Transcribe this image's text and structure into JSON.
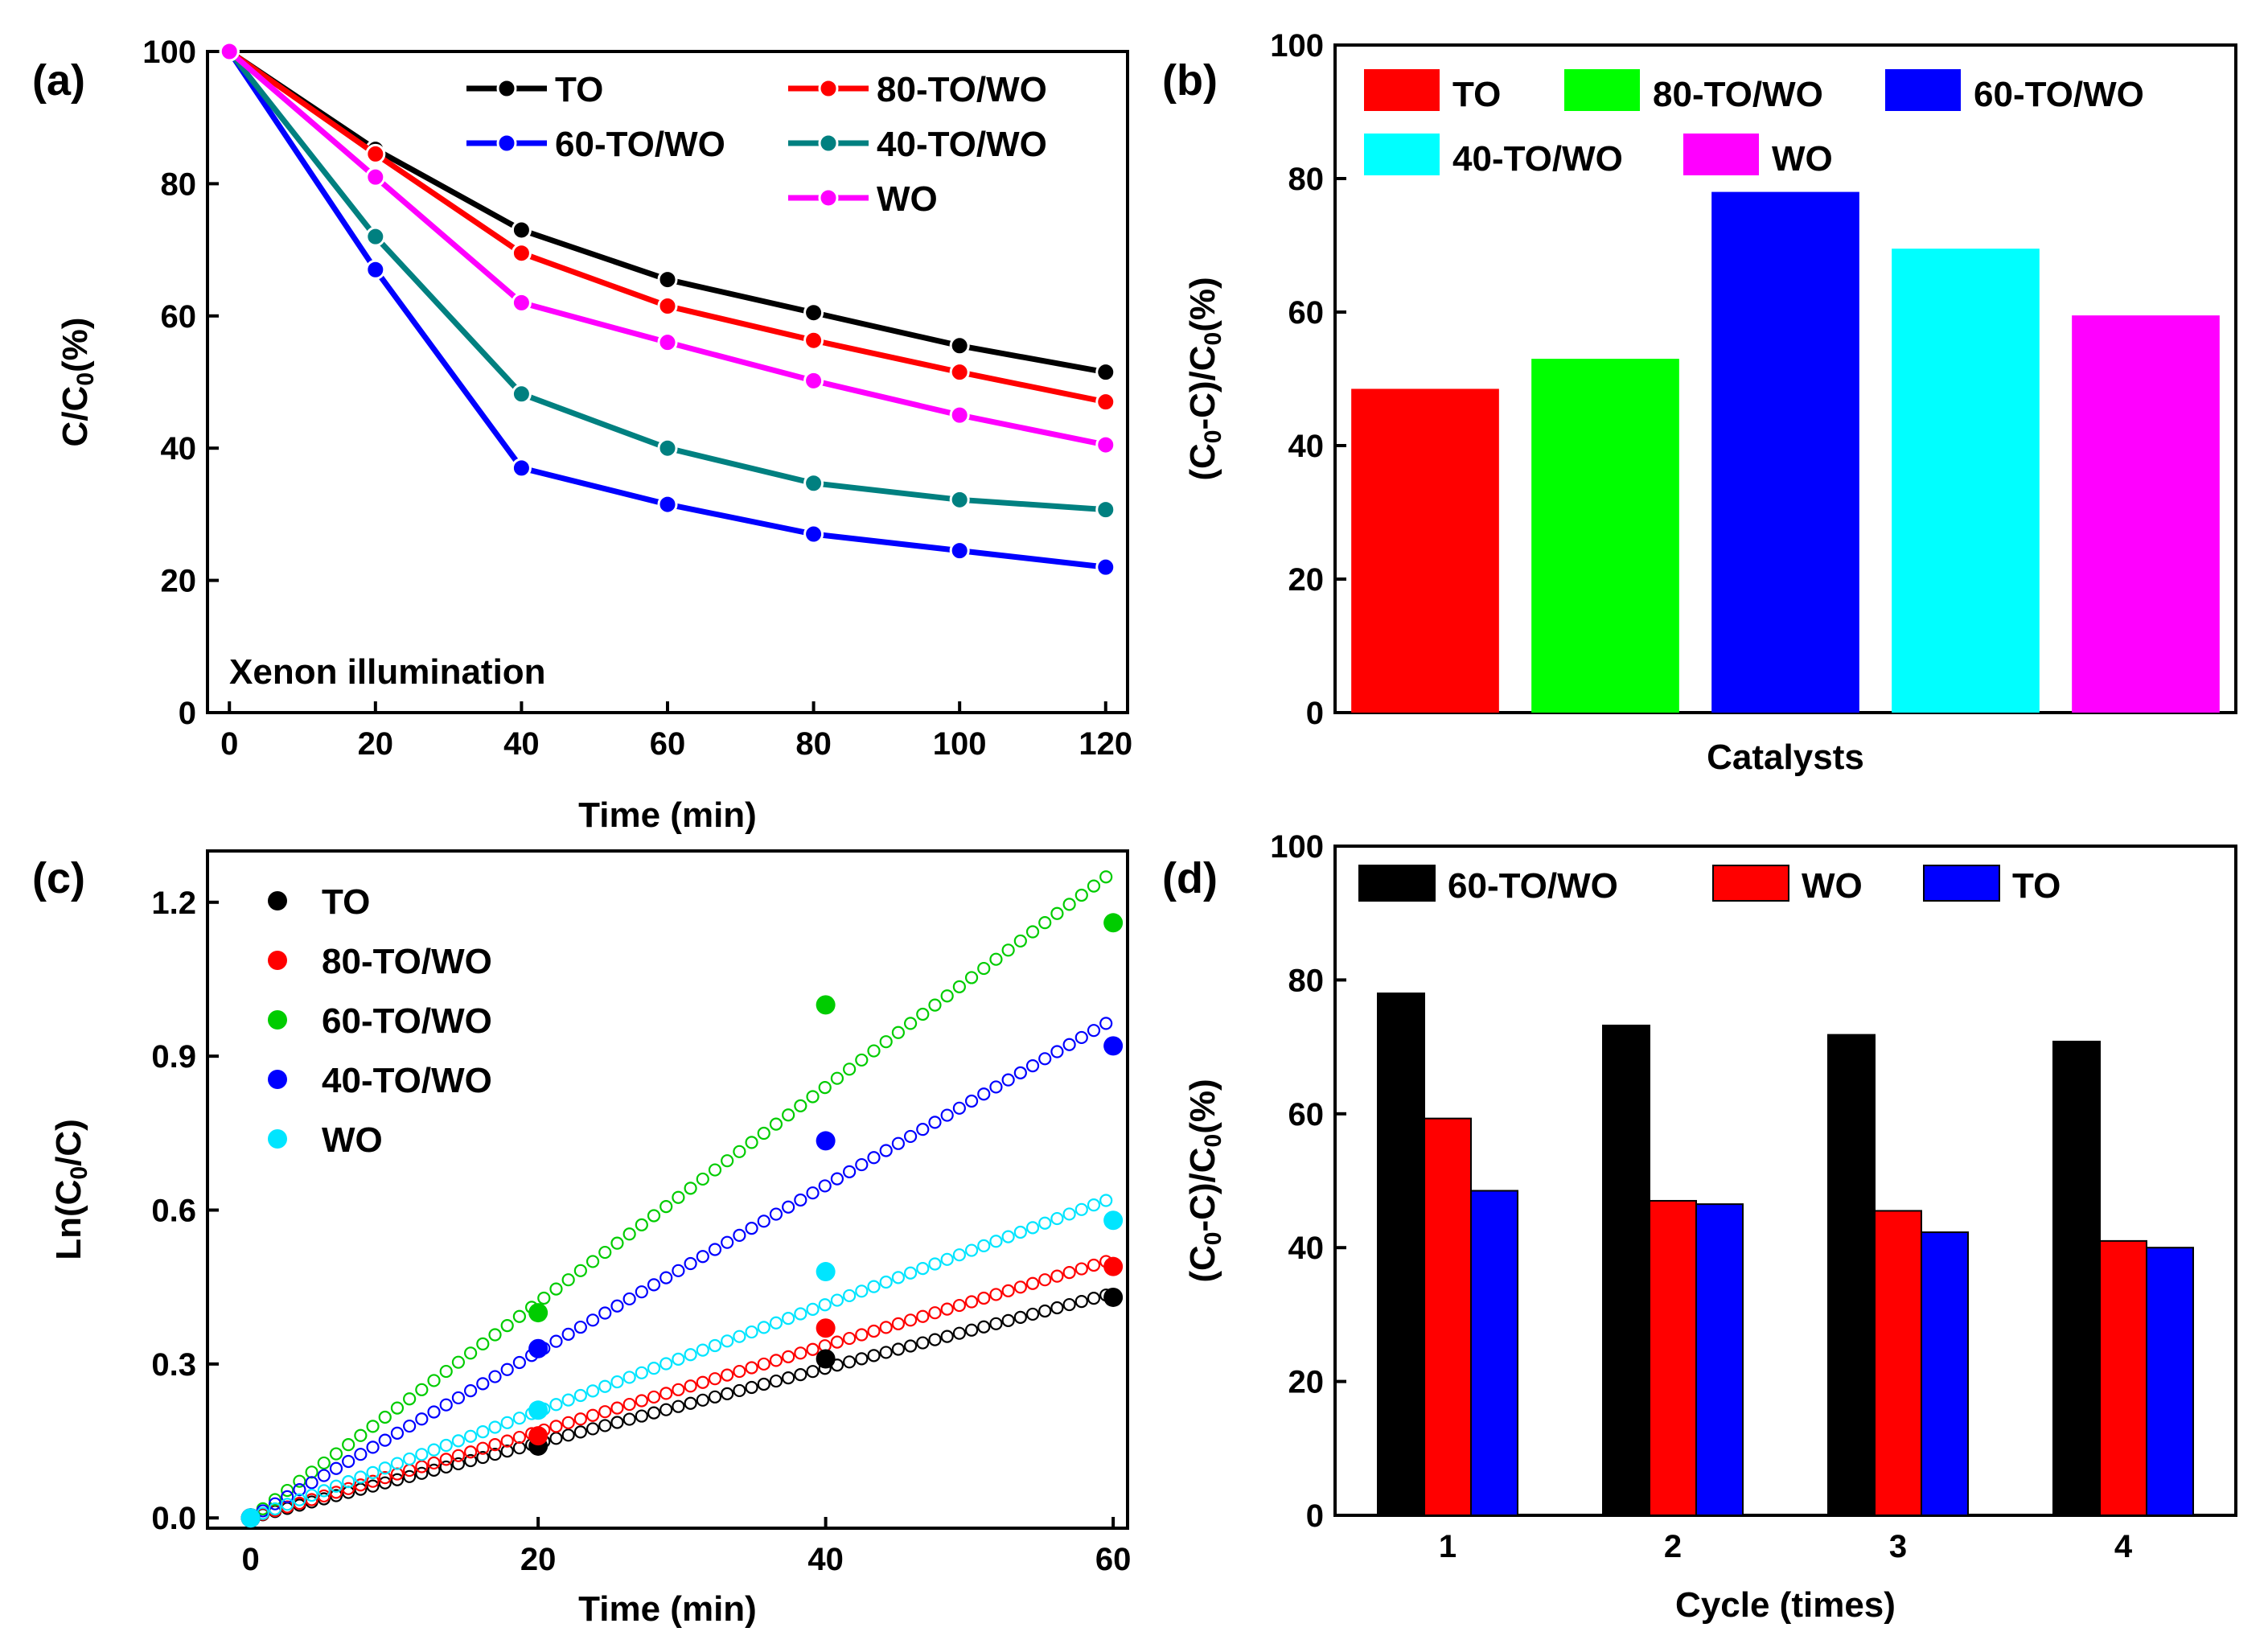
{
  "colors": {
    "TO": "#000000",
    "80-TO/WO": "#ff0000",
    "60-TO/WO": "#0000ff",
    "40-TO/WO": "#008080",
    "WO": "#ff00ff",
    "bar_TO": "#ff0000",
    "bar_80": "#00ff00",
    "bar_60": "#0000ff",
    "bar_40": "#00ffff",
    "bar_WO": "#ff00ff",
    "c_TO": "#000000",
    "c_80": "#ff0000",
    "c_60": "#00cc00",
    "c_40": "#0000ff",
    "c_WO": "#00e5ff",
    "d_60": "#000000",
    "d_WO": "#ff0000",
    "d_TO": "#0000ff"
  },
  "chart_data": [
    {
      "id": "a",
      "panel_label": "(a)",
      "type": "line",
      "xlabel": "Time (min)",
      "ylabel_main": "C/C",
      "ylabel_sub": "0",
      "ylabel_tail": "(%)",
      "annotation": "Xenon illumination",
      "xlim": [
        -3,
        123
      ],
      "ylim": [
        0,
        100
      ],
      "xticks": [
        0,
        20,
        40,
        60,
        80,
        100,
        120
      ],
      "yticks": [
        0,
        20,
        40,
        60,
        80,
        100
      ],
      "x": [
        0,
        20,
        40,
        60,
        80,
        100,
        120
      ],
      "series": [
        {
          "name": "TO",
          "color_key": "TO",
          "values": [
            100,
            85.2,
            73,
            65.5,
            60.5,
            55.5,
            51.5
          ]
        },
        {
          "name": "80-TO/WO",
          "color_key": "80-TO/WO",
          "values": [
            100,
            84.5,
            69.5,
            61.5,
            56.3,
            51.5,
            47
          ]
        },
        {
          "name": "60-TO/WO",
          "color_key": "60-TO/WO",
          "values": [
            100,
            67,
            37,
            31.5,
            27,
            24.5,
            22
          ]
        },
        {
          "name": "40-TO/WO",
          "color_key": "40-TO/WO",
          "values": [
            100,
            72,
            48.2,
            40,
            34.7,
            32.2,
            30.7
          ]
        },
        {
          "name": "WO",
          "color_key": "WO",
          "values": [
            100,
            81,
            62,
            56,
            50.2,
            45,
            40.5
          ]
        }
      ]
    },
    {
      "id": "b",
      "panel_label": "(b)",
      "type": "bar",
      "xlabel": "Catalysts",
      "ylabel_a": "(C",
      "ylabel_sub1": "0",
      "ylabel_b": "-C)/C",
      "ylabel_sub2": "0",
      "ylabel_c": "(%)",
      "ylim": [
        0,
        100
      ],
      "yticks": [
        0,
        20,
        40,
        60,
        80,
        100
      ],
      "categories": [
        "TO",
        "80-TO/WO",
        "60-TO/WO",
        "40-TO/WO",
        "WO"
      ],
      "color_keys": [
        "bar_TO",
        "bar_80",
        "bar_60",
        "bar_40",
        "bar_WO"
      ],
      "values": [
        48.5,
        53,
        78,
        69.5,
        59.5
      ]
    },
    {
      "id": "c",
      "panel_label": "(c)",
      "type": "scatter",
      "xlabel": "Time (min)",
      "ylabel_a": "Ln(C",
      "ylabel_sub": "0",
      "ylabel_b": "/C)",
      "xlim": [
        -3,
        61
      ],
      "ylim": [
        -0.02,
        1.3
      ],
      "xticks": [
        0,
        20,
        40,
        60
      ],
      "yticks": [
        0.0,
        0.3,
        0.6,
        0.9,
        1.2
      ],
      "ytick_labels": [
        "0.0",
        "0.3",
        "0.6",
        "0.9",
        "1.2"
      ],
      "x": [
        0,
        20,
        40,
        60
      ],
      "series": [
        {
          "name": "TO",
          "color_key": "c_TO",
          "points": [
            0,
            0.14,
            0.31,
            0.43
          ],
          "fit_slope": 0.0073
        },
        {
          "name": "80-TO/WO",
          "color_key": "c_80",
          "points": [
            0,
            0.16,
            0.37,
            0.49
          ],
          "fit_slope": 0.0084
        },
        {
          "name": "60-TO/WO",
          "color_key": "c_60",
          "points": [
            0,
            0.4,
            1.0,
            1.16
          ],
          "fit_slope": 0.021
        },
        {
          "name": "40-TO/WO",
          "color_key": "c_40",
          "points": [
            0,
            0.33,
            0.735,
            0.92
          ],
          "fit_slope": 0.0162
        },
        {
          "name": "WO",
          "color_key": "c_WO",
          "points": [
            0,
            0.21,
            0.48,
            0.58
          ],
          "fit_slope": 0.0104
        }
      ]
    },
    {
      "id": "d",
      "panel_label": "(d)",
      "type": "bar",
      "xlabel": "Cycle (times)",
      "ylabel_a": "(C",
      "ylabel_sub1": "0",
      "ylabel_b": "-C)/C",
      "ylabel_sub2": "0",
      "ylabel_c": "(%)",
      "ylim": [
        0,
        100
      ],
      "yticks": [
        0,
        20,
        40,
        60,
        80,
        100
      ],
      "categories": [
        "1",
        "2",
        "3",
        "4"
      ],
      "series": [
        {
          "name": "60-TO/WO",
          "color_key": "d_60",
          "values": [
            78,
            73.2,
            71.8,
            70.8
          ]
        },
        {
          "name": "WO",
          "color_key": "d_WO",
          "values": [
            59.3,
            47,
            45.5,
            41
          ]
        },
        {
          "name": "TO",
          "color_key": "d_TO",
          "values": [
            48.5,
            46.5,
            42.3,
            40
          ]
        }
      ]
    }
  ]
}
